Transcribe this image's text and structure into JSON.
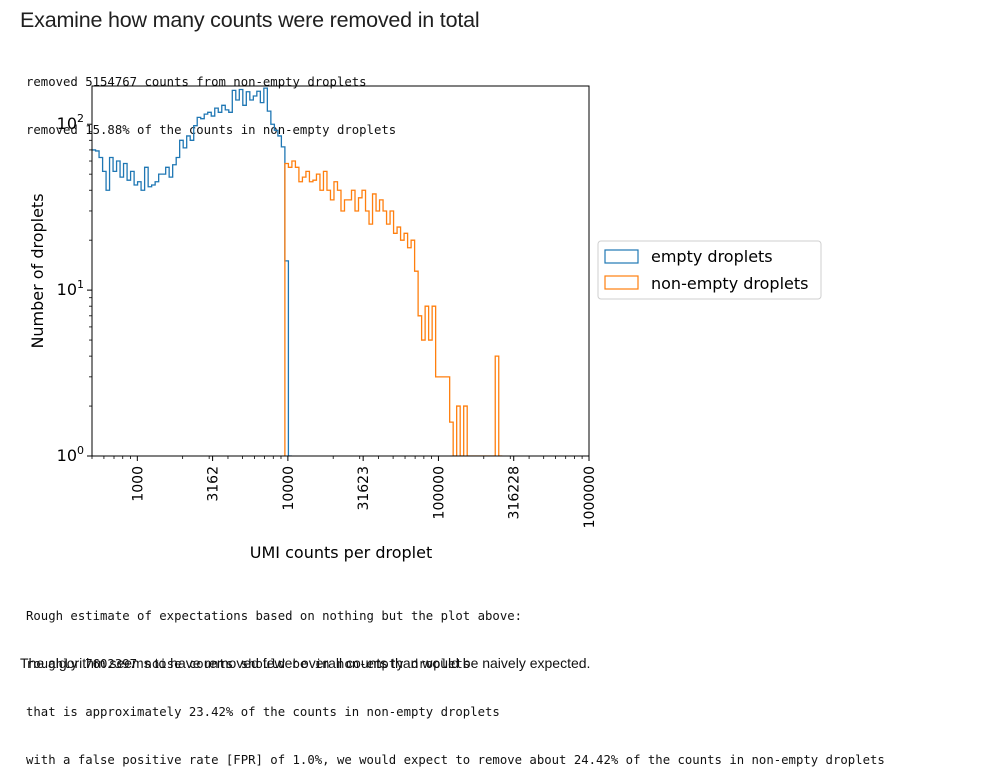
{
  "header": {
    "title": "Examine how many counts were removed in total"
  },
  "output_top": [
    "removed 5154767 counts from non-empty droplets",
    "removed 15.88% of the counts in non-empty droplets"
  ],
  "chart_data": {
    "type": "histogram-step",
    "xscale": "log10",
    "yscale": "log10",
    "xlabel": "UMI counts per droplet",
    "ylabel": "Number of droplets",
    "x_ticks": [
      "1000",
      "3162",
      "10000",
      "31623",
      "100000",
      "316228",
      "1000000"
    ],
    "x_tick_values": [
      1000,
      3162,
      10000,
      31623,
      100000,
      316228,
      1000000
    ],
    "y_ticks": [
      {
        "base": "10",
        "exp": "0",
        "value": 1
      },
      {
        "base": "10",
        "exp": "1",
        "value": 10
      },
      {
        "base": "10",
        "exp": "2",
        "value": 100
      }
    ],
    "xlim": [
      500,
      1000000
    ],
    "ylim": [
      1,
      170
    ],
    "legend_position": "outside-right",
    "series": [
      {
        "name": "empty droplets",
        "color": "#1f77b4",
        "bins": [
          [
            500,
            528,
            70
          ],
          [
            528,
            557,
            69
          ],
          [
            557,
            588,
            63
          ],
          [
            588,
            620,
            52
          ],
          [
            620,
            654,
            40
          ],
          [
            654,
            690,
            63
          ],
          [
            690,
            728,
            52
          ],
          [
            728,
            768,
            60
          ],
          [
            768,
            810,
            48
          ],
          [
            810,
            855,
            58
          ],
          [
            855,
            902,
            46
          ],
          [
            902,
            952,
            52
          ],
          [
            952,
            1004,
            43
          ],
          [
            1004,
            1059,
            45
          ],
          [
            1059,
            1118,
            40
          ],
          [
            1118,
            1180,
            55
          ],
          [
            1180,
            1245,
            42
          ],
          [
            1245,
            1313,
            43
          ],
          [
            1313,
            1386,
            45
          ],
          [
            1386,
            1462,
            50
          ],
          [
            1462,
            1543,
            50
          ],
          [
            1543,
            1627,
            55
          ],
          [
            1627,
            1717,
            48
          ],
          [
            1717,
            1812,
            57
          ],
          [
            1812,
            1911,
            63
          ],
          [
            1911,
            2017,
            80
          ],
          [
            2017,
            2128,
            72
          ],
          [
            2128,
            2245,
            85
          ],
          [
            2245,
            2369,
            80
          ],
          [
            2369,
            2499,
            98
          ],
          [
            2499,
            2637,
            110
          ],
          [
            2637,
            2782,
            108
          ],
          [
            2782,
            2935,
            115
          ],
          [
            2935,
            3097,
            118
          ],
          [
            3097,
            3268,
            112
          ],
          [
            3268,
            3448,
            125
          ],
          [
            3448,
            3638,
            118
          ],
          [
            3638,
            3838,
            130
          ],
          [
            3838,
            4050,
            122
          ],
          [
            4050,
            4273,
            118
          ],
          [
            4273,
            4508,
            160
          ],
          [
            4508,
            4757,
            140
          ],
          [
            4757,
            5019,
            162
          ],
          [
            5019,
            5295,
            130
          ],
          [
            5295,
            5587,
            157
          ],
          [
            5587,
            5895,
            140
          ],
          [
            5895,
            6220,
            148
          ],
          [
            6220,
            6562,
            158
          ],
          [
            6562,
            6924,
            135
          ],
          [
            6924,
            7305,
            165
          ],
          [
            7305,
            7708,
            120
          ],
          [
            7708,
            8133,
            100
          ],
          [
            8133,
            8581,
            92
          ],
          [
            8581,
            9054,
            85
          ],
          [
            9054,
            9553,
            73
          ],
          [
            9553,
            10079,
            15
          ],
          [
            10079,
            10634,
            0
          ]
        ]
      },
      {
        "name": "non-empty droplets",
        "color": "#ff7f0e",
        "bins": [
          [
            9553,
            10079,
            58
          ],
          [
            10079,
            10634,
            55
          ],
          [
            10634,
            11220,
            60
          ],
          [
            11220,
            11838,
            55
          ],
          [
            11838,
            12490,
            45
          ],
          [
            12490,
            13178,
            48
          ],
          [
            13178,
            13904,
            52
          ],
          [
            13904,
            14670,
            45
          ],
          [
            14670,
            15478,
            46
          ],
          [
            15478,
            16330,
            50
          ],
          [
            16330,
            17230,
            40
          ],
          [
            17230,
            18179,
            52
          ],
          [
            18179,
            19180,
            40
          ],
          [
            19180,
            20236,
            35
          ],
          [
            20236,
            21351,
            45
          ],
          [
            21351,
            22527,
            40
          ],
          [
            22527,
            23768,
            30
          ],
          [
            23768,
            25077,
            35
          ],
          [
            25077,
            26458,
            35
          ],
          [
            26458,
            27915,
            40
          ],
          [
            27915,
            29453,
            30
          ],
          [
            29453,
            31075,
            36
          ],
          [
            31075,
            32787,
            40
          ],
          [
            32787,
            34593,
            30
          ],
          [
            34593,
            36498,
            25
          ],
          [
            36498,
            38509,
            38
          ],
          [
            38509,
            40630,
            30
          ],
          [
            40630,
            42868,
            35
          ],
          [
            42868,
            45229,
            30
          ],
          [
            45229,
            47720,
            25
          ],
          [
            47720,
            50349,
            30
          ],
          [
            50349,
            53122,
            22
          ],
          [
            53122,
            56048,
            24
          ],
          [
            56048,
            59135,
            20
          ],
          [
            59135,
            62392,
            22
          ],
          [
            62392,
            65829,
            18
          ],
          [
            65829,
            69455,
            20
          ],
          [
            69455,
            73280,
            13
          ],
          [
            73280,
            77317,
            7
          ],
          [
            77317,
            81575,
            5
          ],
          [
            81575,
            86069,
            8
          ],
          [
            86069,
            90810,
            5
          ],
          [
            90810,
            95811,
            8
          ],
          [
            95811,
            101089,
            3
          ],
          [
            101089,
            106657,
            3
          ],
          [
            106657,
            112532,
            3
          ],
          [
            112532,
            118730,
            3
          ],
          [
            118730,
            125270,
            1.6
          ],
          [
            125270,
            132170,
            1
          ],
          [
            132170,
            139450,
            2
          ],
          [
            139450,
            147131,
            1
          ],
          [
            147131,
            155235,
            2
          ],
          [
            155235,
            163786,
            1
          ],
          [
            163786,
            172807,
            1
          ],
          [
            172807,
            182326,
            1
          ],
          [
            182326,
            192369,
            1
          ],
          [
            192369,
            202965,
            1
          ],
          [
            202965,
            214144,
            1
          ],
          [
            214144,
            225940,
            1
          ],
          [
            225940,
            238385,
            1
          ],
          [
            238385,
            251516,
            4
          ],
          [
            251516,
            265370,
            1
          ]
        ]
      }
    ]
  },
  "output_bottom": [
    "Rough estimate of expectations based on nothing but the plot above:",
    "roughly 7602397 noise counts should be in non-empty droplets",
    "that is approximately 23.42% of the counts in non-empty droplets",
    "with a false positive rate [FPR] of 1.0%, we would expect to remove about 24.42% of the counts in non-empty droplets"
  ],
  "conclusion": "The algorithm seems to have removed fewer overall counts than would be naively expected."
}
